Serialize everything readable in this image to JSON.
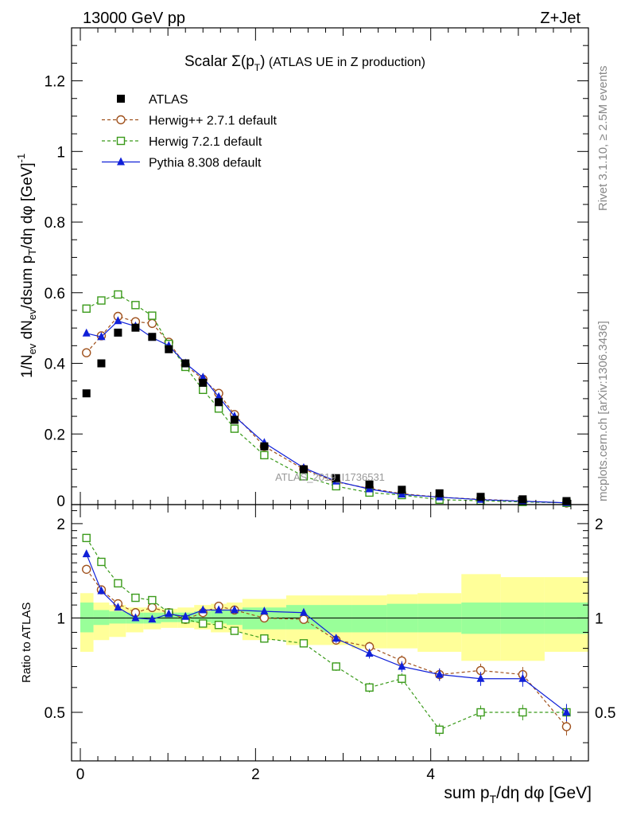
{
  "header": {
    "left": "13000 GeV pp",
    "right": "Z+Jet"
  },
  "side_labels": {
    "rivet": "Rivet 3.1.10, ≥ 2.5M events",
    "mcplots": "mcplots.cern.ch [arXiv:1306.3436]"
  },
  "watermark": "ATLAS_2019_I1736531",
  "colors": {
    "atlas": "#000000",
    "herwigpp": "#a0521e",
    "herwig7": "#3a9a1a",
    "pythia": "#1020d8",
    "band_inner": "#99ff99",
    "band_outer": "#ffff99"
  },
  "chart_data": [
    {
      "type": "scatter",
      "title_prefix": "Scalar ",
      "title_symbol": "Σ(p",
      "title_sub": "T",
      "title_close": ")",
      "title_suffix": " (ATLAS UE in Z production)",
      "ylabel": "1/N_ev dN_ev/dsum p_T/dη dφ [GeV]^-1",
      "xlim": [
        -0.1,
        5.8
      ],
      "ylim": [
        0,
        1.35
      ],
      "y_ticks": [
        0.2,
        0.4,
        0.6,
        0.8,
        1,
        1.2
      ],
      "legend_position": "top-left",
      "x": [
        0.07,
        0.24,
        0.43,
        0.63,
        0.82,
        1.01,
        1.2,
        1.4,
        1.58,
        1.76,
        2.1,
        2.55,
        2.92,
        3.3,
        3.67,
        4.1,
        4.57,
        5.05,
        5.55
      ],
      "series": [
        {
          "name": "ATLAS",
          "marker": "square-filled",
          "values": [
            0.315,
            0.4,
            0.487,
            0.501,
            0.475,
            0.44,
            0.4,
            0.345,
            0.29,
            0.24,
            0.165,
            0.1,
            0.075,
            0.057,
            0.042,
            0.032,
            0.022,
            0.015,
            0.01
          ]
        },
        {
          "name": "Herwig++ 2.7.1 default",
          "marker": "circle-open",
          "dash": true,
          "values": [
            0.43,
            0.478,
            0.533,
            0.518,
            0.513,
            0.46,
            0.395,
            0.355,
            0.315,
            0.255,
            0.165,
            0.1,
            0.064,
            0.046,
            0.031,
            0.021,
            0.015,
            0.01,
            0.0045
          ]
        },
        {
          "name": "Herwig 7.2.1 default",
          "marker": "square-open",
          "dash": true,
          "values": [
            0.555,
            0.578,
            0.595,
            0.565,
            0.535,
            0.455,
            0.39,
            0.325,
            0.272,
            0.215,
            0.14,
            0.08,
            0.052,
            0.034,
            0.027,
            0.014,
            0.011,
            0.0075,
            0.005
          ]
        },
        {
          "name": "Pythia 8.308 default",
          "marker": "triangle-filled",
          "dash": false,
          "values": [
            0.485,
            0.475,
            0.52,
            0.505,
            0.473,
            0.45,
            0.4,
            0.36,
            0.305,
            0.25,
            0.175,
            0.104,
            0.066,
            0.044,
            0.029,
            0.021,
            0.014,
            0.0096,
            0.005
          ]
        }
      ]
    },
    {
      "type": "scatter",
      "ylabel": "Ratio to ATLAS",
      "xlabel": "sum p_T/dη dφ [GeV]",
      "xlim": [
        -0.1,
        5.8
      ],
      "ylim": [
        0.35,
        2.3
      ],
      "y_ticks": [
        0.5,
        1,
        2
      ],
      "x_ticks": [
        0,
        2,
        4
      ],
      "band_edges": [
        0.0,
        0.15,
        0.33,
        0.52,
        0.72,
        0.92,
        1.11,
        1.3,
        1.49,
        1.67,
        1.85,
        2.35,
        2.75,
        3.1,
        3.5,
        3.85,
        4.35,
        4.8,
        5.3,
        5.8
      ],
      "band_inner": [
        [
          0.9,
          1.12
        ],
        [
          0.95,
          1.06
        ],
        [
          0.96,
          1.05
        ],
        [
          0.96,
          1.04
        ],
        [
          0.96,
          1.04
        ],
        [
          0.97,
          1.04
        ],
        [
          0.97,
          1.04
        ],
        [
          0.97,
          1.05
        ],
        [
          0.96,
          1.06
        ],
        [
          0.95,
          1.06
        ],
        [
          0.92,
          1.08
        ],
        [
          0.92,
          1.1
        ],
        [
          0.9,
          1.1
        ],
        [
          0.9,
          1.1
        ],
        [
          0.9,
          1.11
        ],
        [
          0.9,
          1.11
        ],
        [
          0.89,
          1.12
        ],
        [
          0.89,
          1.12
        ],
        [
          0.89,
          1.12
        ]
      ],
      "band_outer": [
        [
          0.78,
          1.2
        ],
        [
          0.85,
          1.12
        ],
        [
          0.87,
          1.1
        ],
        [
          0.9,
          1.08
        ],
        [
          0.92,
          1.08
        ],
        [
          0.93,
          1.07
        ],
        [
          0.93,
          1.08
        ],
        [
          0.92,
          1.1
        ],
        [
          0.9,
          1.11
        ],
        [
          0.9,
          1.12
        ],
        [
          0.85,
          1.15
        ],
        [
          0.82,
          1.18
        ],
        [
          0.82,
          1.18
        ],
        [
          0.8,
          1.18
        ],
        [
          0.8,
          1.19
        ],
        [
          0.78,
          1.2
        ],
        [
          0.73,
          1.38
        ],
        [
          0.73,
          1.35
        ],
        [
          0.78,
          1.35
        ]
      ],
      "x": [
        0.07,
        0.24,
        0.43,
        0.63,
        0.82,
        1.01,
        1.2,
        1.4,
        1.58,
        1.76,
        2.1,
        2.55,
        2.92,
        3.3,
        3.67,
        4.1,
        4.57,
        5.05,
        5.55
      ],
      "series": [
        {
          "name": "Herwig++ 2.7.1 default",
          "values": [
            1.43,
            1.23,
            1.11,
            1.04,
            1.08,
            1.04,
            0.99,
            1.04,
            1.09,
            1.06,
            1.0,
            0.99,
            0.85,
            0.81,
            0.73,
            0.66,
            0.68,
            0.66,
            0.45
          ]
        },
        {
          "name": "Herwig 7.2.1 default",
          "values": [
            1.8,
            1.51,
            1.29,
            1.16,
            1.14,
            1.04,
            0.99,
            0.96,
            0.95,
            0.91,
            0.86,
            0.83,
            0.7,
            0.6,
            0.64,
            0.44,
            0.5,
            0.5,
            0.5
          ]
        },
        {
          "name": "Pythia 8.308 default",
          "values": [
            1.6,
            1.22,
            1.08,
            1.0,
            0.99,
            1.03,
            1.01,
            1.06,
            1.06,
            1.06,
            1.05,
            1.04,
            0.86,
            0.77,
            0.7,
            0.66,
            0.64,
            0.64,
            0.5
          ]
        }
      ]
    }
  ]
}
